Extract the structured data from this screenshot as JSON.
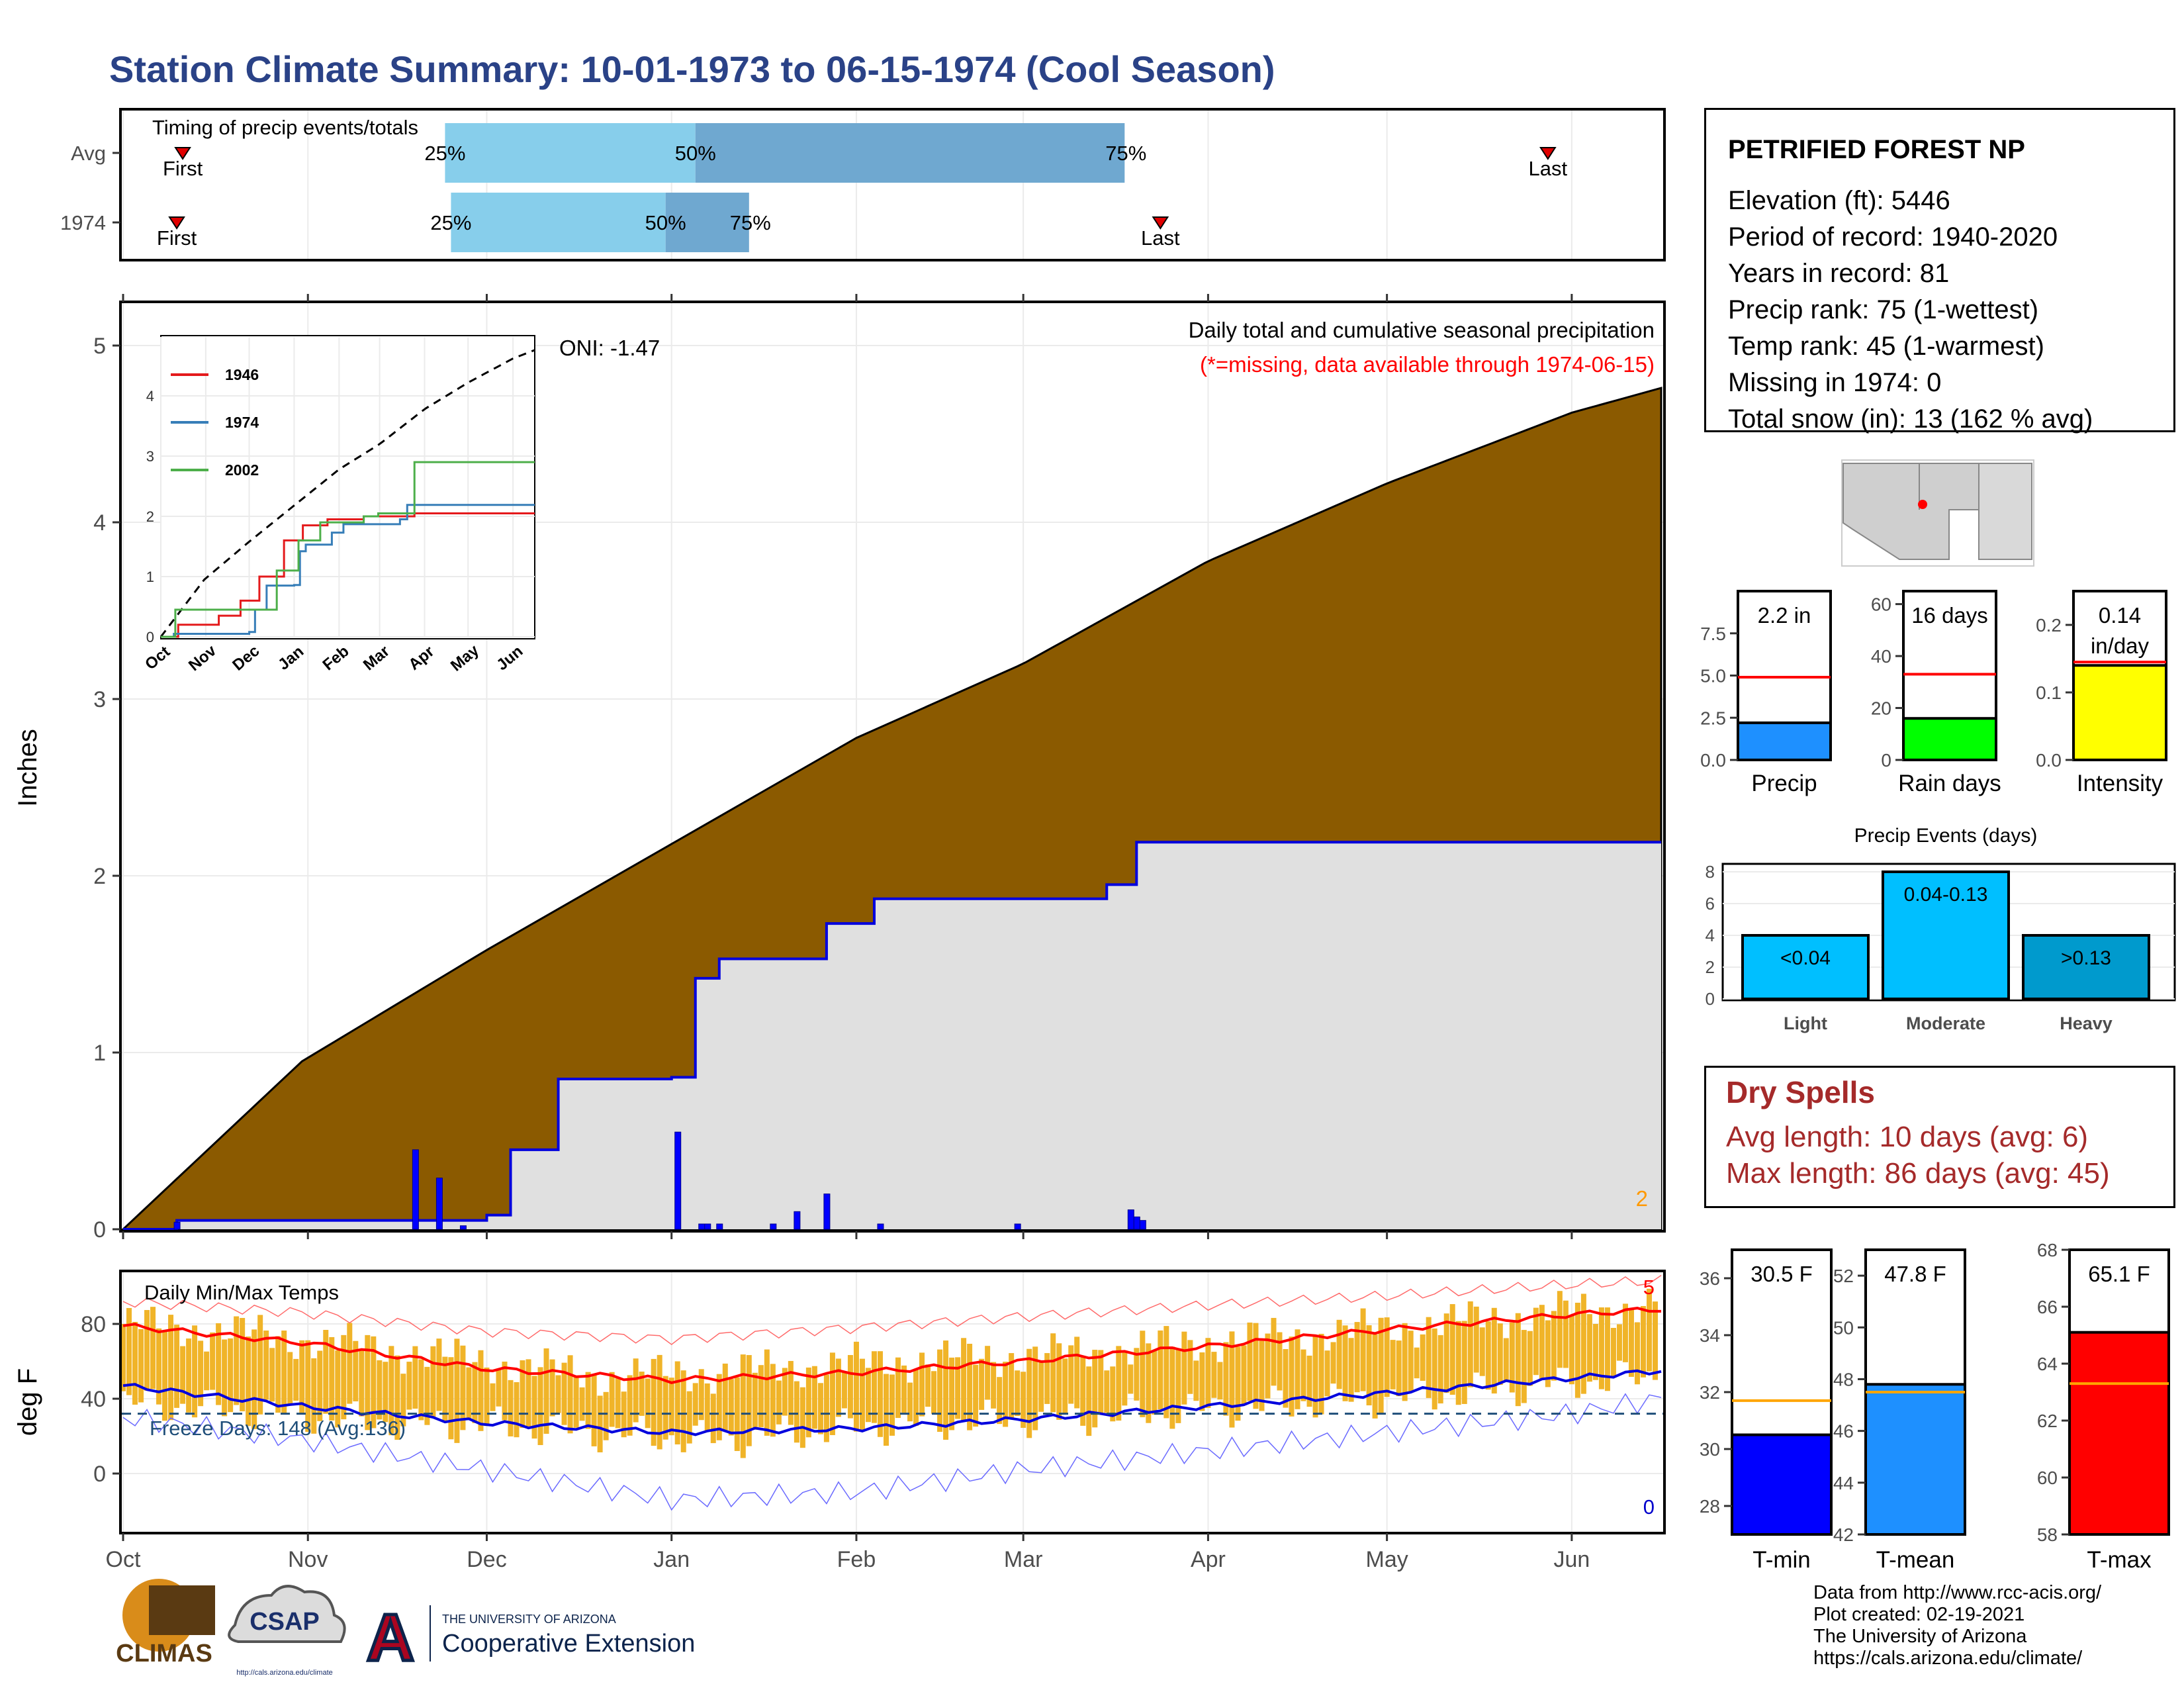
{
  "title": "Station Climate Summary: 10-01-1973 to 06-15-1974 (Cool Season)",
  "timing": {
    "title": "Timing of precip events/totals",
    "rows": [
      {
        "label": "Avg",
        "first_label": "First",
        "last_label": "Last",
        "first_day": 10,
        "last_day": 239,
        "p25_day": 54,
        "p50_day": 96,
        "p75_day": 168,
        "p25_label": "25%",
        "p50_label": "50%",
        "p75_label": "75%"
      },
      {
        "label": "1974",
        "first_label": "First",
        "last_label": "Last",
        "first_day": 9,
        "last_day": 174,
        "p25_day": 55,
        "p50_day": 91,
        "p75_day": 105,
        "p25_label": "25%",
        "p50_label": "50%",
        "p75_label": "75%"
      }
    ]
  },
  "station": {
    "name": "PETRIFIED FOREST NP",
    "lines": [
      "Elevation (ft): 5446",
      "Period of record: 1940-2020",
      "Years in record: 81",
      "Precip rank: 75 (1-wettest)",
      "Temp rank: 45 (1-warmest)",
      "Missing in 1974: 0",
      "Total snow (in): 13 (162 % avg)"
    ]
  },
  "precip_panel": {
    "ylabel": "Inches",
    "title": "Daily total and cumulative seasonal precipitation",
    "note": "(*=missing, data available through 1974-06-15)",
    "oni_label": "ONI: -1.47",
    "count_label": "2",
    "yticks": [
      "0",
      "1",
      "2",
      "3",
      "4",
      "5"
    ]
  },
  "months": [
    "Oct",
    "Nov",
    "Dec",
    "Jan",
    "Feb",
    "Mar",
    "Apr",
    "May",
    "Jun"
  ],
  "inset": {
    "legend": [
      "1946",
      "1974",
      "2002"
    ],
    "yticks": [
      "0",
      "1",
      "2",
      "3",
      "4"
    ],
    "colors": {
      "1946": "#e41a1c",
      "1974": "#377eb8",
      "2002": "#4daf4a"
    }
  },
  "bars_precip": {
    "labels": [
      "Precip",
      "Rain days",
      "Intensity"
    ],
    "value_labels": [
      "2.2 in",
      "16 days",
      "0.14\nin/day"
    ],
    "values": [
      2.2,
      16,
      0.14
    ],
    "avg": [
      4.9,
      33,
      0.145
    ],
    "ymax": [
      10,
      65,
      0.25
    ],
    "ticks": [
      [
        "0.0",
        "2.5",
        "5.0",
        "7.5"
      ],
      [
        "0",
        "20",
        "40",
        "60"
      ],
      [
        "0.0",
        "0.1",
        "0.2"
      ]
    ],
    "tick_vals": [
      [
        0,
        2.5,
        5.0,
        7.5
      ],
      [
        0,
        20,
        40,
        60
      ],
      [
        0,
        0.1,
        0.2
      ]
    ],
    "colors": [
      "#1e90ff",
      "#00ff00",
      "#ffff00"
    ]
  },
  "events": {
    "title": "Precip Events (days)",
    "categories": [
      "Light",
      "Moderate",
      "Heavy"
    ],
    "ranges": [
      "<0.04",
      "0.04-0.13",
      ">0.13"
    ],
    "values": [
      4,
      8,
      4
    ],
    "yticks": [
      "0",
      "2",
      "4",
      "6",
      "8"
    ],
    "colors": [
      "#00bfff",
      "#00bfff",
      "#009acd"
    ]
  },
  "dry_spells": {
    "title": "Dry Spells",
    "avg_line": "Avg length: 10 days (avg: 6)",
    "max_line": "Max length: 86 days (avg: 45)"
  },
  "temp_panel": {
    "title": "Daily Min/Max Temps",
    "ylabel": "deg F",
    "freeze_label": "Freeze Days: 148 (Avg:136)",
    "count_top": "5",
    "count_bottom": "0",
    "yticks": [
      "0",
      "40",
      "80"
    ]
  },
  "temp_bars": {
    "labels": [
      "T-min",
      "T-mean",
      "T-max"
    ],
    "value_labels": [
      "30.5 F",
      "47.8 F",
      "65.1 F"
    ],
    "values": [
      30.5,
      47.8,
      65.1
    ],
    "avg": [
      31.7,
      47.5,
      63.3
    ],
    "ranges": [
      [
        27,
        37
      ],
      [
        42,
        53
      ],
      [
        58,
        68
      ]
    ],
    "ticks": [
      [
        "28",
        "30",
        "32",
        "34",
        "36"
      ],
      [
        "42",
        "44",
        "46",
        "48",
        "50",
        "52"
      ],
      [
        "58",
        "60",
        "62",
        "64",
        "66",
        "68"
      ]
    ],
    "tick_vals": [
      [
        28,
        30,
        32,
        34,
        36
      ],
      [
        42,
        44,
        46,
        48,
        50,
        52
      ],
      [
        58,
        60,
        62,
        64,
        66,
        68
      ]
    ],
    "colors": [
      "#0000ff",
      "#1e90ff",
      "#ff0000"
    ]
  },
  "chart_data": [
    {
      "type": "area",
      "title": "Daily total and cumulative seasonal precipitation",
      "ylabel": "Inches",
      "ylim": [
        0,
        5.2
      ],
      "x_unit": "day of season (0 = Oct 1)",
      "series": [
        {
          "name": "cumulative average",
          "x": [
            0,
            30,
            61,
            92,
            123,
            151,
            182,
            212,
            243,
            258
          ],
          "values": [
            0,
            0.95,
            1.58,
            2.18,
            2.78,
            3.2,
            3.78,
            4.22,
            4.62,
            4.76
          ]
        },
        {
          "name": "cumulative 1974",
          "x": [
            0,
            9,
            61,
            65,
            73,
            92,
            96,
            100,
            110,
            118,
            126,
            150,
            165,
            170,
            258
          ],
          "values": [
            0,
            0.05,
            0.08,
            0.45,
            0.85,
            0.86,
            1.42,
            1.53,
            1.53,
            1.73,
            1.87,
            1.87,
            1.95,
            2.19,
            2.19
          ]
        },
        {
          "name": "daily 1974",
          "x": [
            9,
            49,
            53,
            57,
            93,
            97,
            98,
            100,
            109,
            113,
            118,
            127,
            150,
            169,
            170,
            171
          ],
          "values": [
            0.04,
            0.45,
            0.29,
            0.02,
            0.55,
            0.03,
            0.03,
            0.03,
            0.03,
            0.1,
            0.2,
            0.03,
            0.03,
            0.11,
            0.07,
            0.05
          ]
        }
      ]
    },
    {
      "type": "line",
      "title": "Daily Min/Max Temps",
      "ylabel": "deg F",
      "ylim": [
        -30,
        110
      ],
      "x_unit": "day of season (0 = Oct 1)",
      "series": [
        {
          "name": "avg max",
          "x": [
            0,
            30,
            61,
            92,
            123,
            151,
            182,
            212,
            243,
            258
          ],
          "values": [
            79,
            70,
            56,
            50,
            54,
            60,
            68,
            77,
            85,
            88
          ]
        },
        {
          "name": "avg min",
          "x": [
            0,
            30,
            61,
            92,
            123,
            151,
            182,
            212,
            243,
            258
          ],
          "values": [
            47,
            36,
            27,
            22,
            24,
            29,
            36,
            43,
            51,
            55
          ]
        },
        {
          "name": "record max",
          "x": [
            0,
            30,
            61,
            92,
            123,
            151,
            182,
            212,
            243,
            258
          ],
          "values": [
            92,
            86,
            76,
            72,
            78,
            84,
            90,
            95,
            101,
            103
          ]
        },
        {
          "name": "record min",
          "x": [
            0,
            30,
            61,
            92,
            123,
            151,
            182,
            212,
            243,
            258
          ],
          "values": [
            30,
            18,
            2,
            -14,
            -10,
            2,
            12,
            22,
            32,
            40
          ]
        },
        {
          "name": "1974 max",
          "x": [
            0,
            20,
            40,
            60,
            80,
            100,
            120,
            140,
            160,
            180,
            200,
            220,
            240,
            258
          ],
          "values": [
            80,
            75,
            68,
            60,
            52,
            54,
            58,
            62,
            64,
            70,
            74,
            80,
            86,
            90
          ]
        },
        {
          "name": "1974 min",
          "x": [
            0,
            20,
            40,
            60,
            80,
            100,
            120,
            140,
            160,
            180,
            200,
            220,
            240,
            258
          ],
          "values": [
            38,
            34,
            28,
            26,
            22,
            18,
            24,
            28,
            30,
            34,
            38,
            42,
            48,
            52
          ]
        }
      ],
      "freeze_line": 32
    }
  ],
  "footer": {
    "lines": [
      "Data from http://www.rcc-acis.org/",
      "Plot created: 02-19-2021",
      "The University of Arizona",
      "https://cals.arizona.edu/climate/"
    ]
  },
  "logos": {
    "climas": "CLIMAS",
    "csap": "CSAP",
    "csap_url": "http://cals.arizona.edu/climate",
    "ua_small": "THE UNIVERSITY OF ARIZONA",
    "ua_big": "Cooperative Extension",
    "ua_letter": "A"
  }
}
